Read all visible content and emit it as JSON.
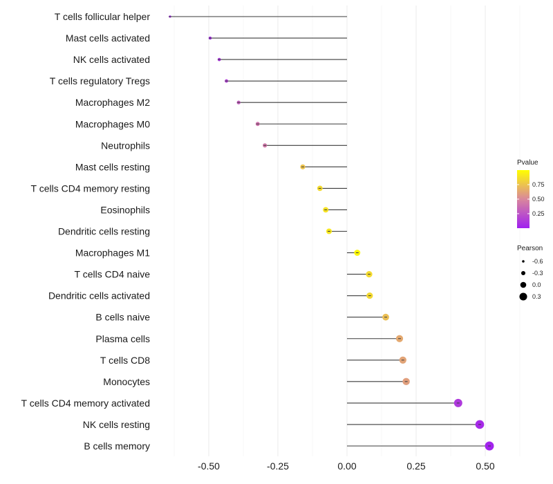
{
  "chart_data": {
    "type": "lollipop",
    "title": "",
    "xlabel": "",
    "ylabel": "",
    "xlim": [
      -0.625,
      0.52
    ],
    "x_ticks": [
      -0.5,
      -0.25,
      0.0,
      0.25,
      0.5
    ],
    "x_tick_labels": [
      "-0.50",
      "-0.25",
      "0.00",
      "0.25",
      "0.50"
    ],
    "grid": true,
    "baseline": 0,
    "categories": [
      "T cells follicular helper",
      "Mast cells activated",
      "NK cells activated",
      "T cells regulatory  Tregs",
      "Macrophages M2",
      "Macrophages M0",
      "Neutrophils",
      "Mast cells resting",
      "T cells CD4 memory resting",
      "Eosinophils",
      "Dendritic cells resting",
      "Macrophages M1",
      "T cells CD4 naive",
      "Dendritic cells activated",
      "B cells naive",
      "Plasma cells",
      "T cells CD8",
      "Monocytes",
      "T cells CD4 memory activated",
      "NK cells resting",
      "B cells memory"
    ],
    "values": [
      -0.64,
      -0.495,
      -0.462,
      -0.436,
      -0.392,
      -0.323,
      -0.297,
      -0.16,
      -0.098,
      -0.077,
      -0.065,
      0.037,
      0.08,
      0.082,
      0.14,
      0.19,
      0.202,
      0.214,
      0.402,
      0.48,
      0.515
    ],
    "pvalues": [
      0.02,
      0.05,
      0.1,
      0.15,
      0.3,
      0.4,
      0.42,
      0.75,
      0.85,
      0.88,
      0.9,
      0.97,
      0.85,
      0.84,
      0.73,
      0.64,
      0.62,
      0.6,
      0.12,
      0.05,
      0.02
    ],
    "legend": {
      "placement": "right",
      "color": {
        "title": "Pvalue",
        "ticks": [
          "0.75",
          "0.50",
          "0.25"
        ],
        "tick_values": [
          0.75,
          0.5,
          0.25
        ],
        "range": [
          0.0,
          1.0
        ],
        "low_color": "#a020f0",
        "mid_color": "#d9879c",
        "high_color": "#ffff00"
      },
      "size": {
        "title": "Pearson",
        "labels": [
          "-0.6",
          "-0.3",
          "0.0",
          "0.3"
        ],
        "values": [
          -0.6,
          -0.3,
          0.0,
          0.3
        ]
      }
    }
  }
}
